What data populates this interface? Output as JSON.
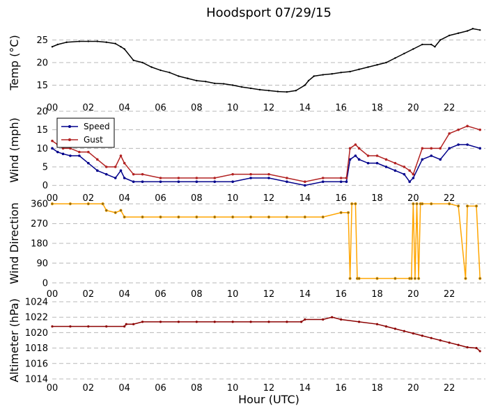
{
  "title": "Hoodsport 07/29/15",
  "xlabel": "Hour (UTC)",
  "x_ticks": [
    "00",
    "02",
    "04",
    "06",
    "08",
    "10",
    "12",
    "14",
    "16",
    "18",
    "20",
    "22"
  ],
  "colors": {
    "temp": "#000000",
    "speed": "#00008b",
    "gust": "#b22222",
    "direction": "#ffa500",
    "altimeter": "#8b0000"
  },
  "chart_data": [
    {
      "type": "line",
      "ylabel": "Temp (°C)",
      "xlim": [
        0,
        24
      ],
      "ylim": [
        12,
        28
      ],
      "yticks": [
        15,
        20,
        25
      ],
      "grid": true,
      "series": [
        {
          "x": [
            0,
            0.3,
            0.8,
            1.5,
            2,
            2.5,
            3,
            3.5,
            3.8,
            4,
            4.5,
            5,
            5.5,
            6,
            6.5,
            7,
            7.5,
            8,
            8.5,
            9,
            9.5,
            10,
            10.5,
            11,
            11.5,
            12,
            12.5,
            13,
            13.5,
            14,
            14.2,
            14.5,
            15,
            15.5,
            16,
            16.5,
            17,
            17.5,
            18,
            18.5,
            19,
            19.5,
            20,
            20.5,
            21,
            21.2,
            21.5,
            22,
            22.5,
            23,
            23.3,
            23.7
          ],
          "values": [
            23.5,
            24,
            24.5,
            24.7,
            24.7,
            24.7,
            24.5,
            24.2,
            23.5,
            23,
            20.5,
            20,
            19,
            18.3,
            17.8,
            17,
            16.5,
            16,
            15.8,
            15.4,
            15.3,
            15,
            14.6,
            14.3,
            14,
            13.8,
            13.6,
            13.5,
            13.8,
            15,
            16,
            17,
            17.3,
            17.5,
            17.8,
            18,
            18.5,
            19,
            19.5,
            20,
            21,
            22,
            23,
            24,
            24,
            23.5,
            25,
            26,
            26.5,
            27,
            27.5,
            27.2
          ]
        }
      ]
    },
    {
      "type": "line",
      "ylabel": "Wind (mph)",
      "xlim": [
        0,
        24
      ],
      "ylim": [
        -1,
        20
      ],
      "yticks": [
        0,
        5,
        10,
        15,
        20
      ],
      "grid": true,
      "legend": "top-left",
      "series": [
        {
          "name": "Speed",
          "x": [
            0,
            0.3,
            0.6,
            1,
            1.5,
            2,
            2.5,
            3,
            3.5,
            3.8,
            4,
            4.5,
            5,
            6,
            7,
            8,
            9,
            10,
            11,
            12,
            13,
            14,
            15,
            16,
            16.3,
            16.5,
            16.8,
            17,
            17.5,
            18,
            18.5,
            19,
            19.5,
            19.8,
            20,
            20.5,
            21,
            21.5,
            22,
            22.5,
            23,
            23.7
          ],
          "values": [
            10,
            9,
            8.5,
            8,
            8,
            6,
            4,
            3,
            2,
            4,
            2,
            1,
            1,
            1,
            1,
            1,
            1,
            1,
            2,
            2,
            1,
            0,
            1,
            1,
            1,
            7,
            8,
            7,
            6,
            6,
            5,
            4,
            3,
            1,
            2,
            7,
            8,
            7,
            10,
            11,
            11,
            10
          ]
        },
        {
          "name": "Gust",
          "x": [
            0,
            0.3,
            0.6,
            1,
            1.5,
            2,
            2.5,
            3,
            3.5,
            3.8,
            4,
            4.5,
            5,
            6,
            7,
            8,
            9,
            10,
            11,
            12,
            13,
            14,
            15,
            16,
            16.3,
            16.5,
            16.8,
            17,
            17.5,
            18,
            18.5,
            19,
            19.5,
            19.8,
            20,
            20.5,
            21,
            21.5,
            22,
            22.5,
            23,
            23.7
          ],
          "values": [
            12,
            11,
            10,
            10,
            9,
            9,
            7,
            5,
            5,
            8,
            6,
            3,
            3,
            2,
            2,
            2,
            2,
            3,
            3,
            3,
            2,
            1,
            2,
            2,
            2,
            10,
            11,
            10,
            8,
            8,
            7,
            6,
            5,
            4,
            3,
            10,
            10,
            10,
            14,
            15,
            16,
            15
          ]
        }
      ]
    },
    {
      "type": "line",
      "ylabel": "Wind Direction",
      "xlim": [
        0,
        24
      ],
      "ylim": [
        -10,
        370
      ],
      "yticks": [
        0,
        90,
        180,
        270,
        360
      ],
      "grid": true,
      "series": [
        {
          "x": [
            0,
            1,
            2,
            2.8,
            3,
            3.5,
            3.8,
            4,
            5,
            6,
            7,
            8,
            9,
            10,
            11,
            12,
            13,
            14,
            15,
            16,
            16.4,
            16.5,
            16.6,
            16.8,
            16.9,
            17,
            18,
            19,
            19.8,
            19.9,
            20,
            20.1,
            20.2,
            20.3,
            20.4,
            20.5,
            21,
            22,
            22.5,
            22.9,
            23,
            23.5,
            23.7
          ],
          "values": [
            360,
            360,
            360,
            360,
            330,
            320,
            330,
            300,
            300,
            300,
            300,
            300,
            300,
            300,
            300,
            300,
            300,
            300,
            300,
            320,
            320,
            20,
            360,
            360,
            20,
            20,
            20,
            20,
            20,
            20,
            360,
            20,
            360,
            20,
            360,
            360,
            360,
            360,
            350,
            20,
            350,
            350,
            20
          ]
        }
      ]
    },
    {
      "type": "line",
      "ylabel": "Altimeter (hPa)",
      "xlim": [
        0,
        24
      ],
      "ylim": [
        1014,
        1024
      ],
      "yticks": [
        1014,
        1016,
        1018,
        1020,
        1022,
        1024
      ],
      "grid": true,
      "series": [
        {
          "x": [
            0,
            1,
            2,
            3,
            4,
            4.1,
            4.5,
            5,
            6,
            7,
            8,
            9,
            10,
            11,
            12,
            13,
            13.8,
            14,
            15,
            15.5,
            16,
            17,
            18,
            18.5,
            19,
            19.5,
            20,
            20.5,
            21,
            21.5,
            22,
            22.5,
            23,
            23.5,
            23.7
          ],
          "values": [
            1020.8,
            1020.8,
            1020.8,
            1020.8,
            1020.8,
            1021.1,
            1021.1,
            1021.4,
            1021.4,
            1021.4,
            1021.4,
            1021.4,
            1021.4,
            1021.4,
            1021.4,
            1021.4,
            1021.4,
            1021.7,
            1021.7,
            1022,
            1021.7,
            1021.4,
            1021.1,
            1020.8,
            1020.5,
            1020.2,
            1019.9,
            1019.6,
            1019.3,
            1019,
            1018.7,
            1018.4,
            1018.1,
            1018,
            1017.6
          ]
        }
      ]
    }
  ]
}
